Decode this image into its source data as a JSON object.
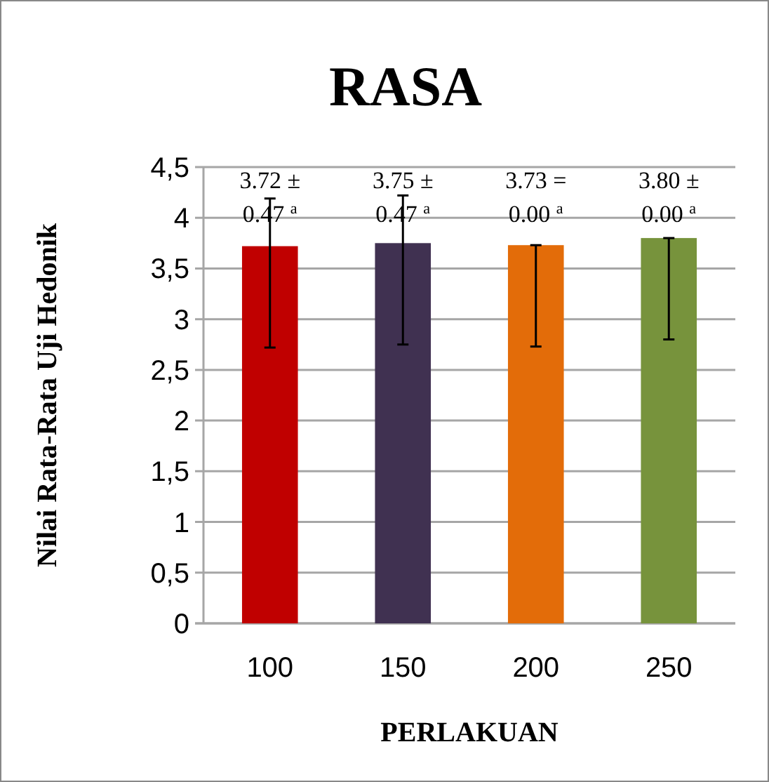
{
  "chart_data": {
    "type": "bar",
    "title": "RASA",
    "xlabel": "PERLAKUAN",
    "ylabel": "Nilai Rata-Rata Uji Hedonik",
    "categories": [
      "100",
      "150",
      "200",
      "250"
    ],
    "values": [
      3.72,
      3.75,
      3.73,
      3.8
    ],
    "colors": [
      "#c00000",
      "#403151",
      "#e36c09",
      "#77933c"
    ],
    "errors": [
      [
        2.72,
        4.19
      ],
      [
        2.75,
        4.22
      ],
      [
        2.73,
        3.73
      ],
      [
        2.8,
        3.8
      ]
    ],
    "value_labels": [
      "3.72 ± 0.47 $^{a}$",
      "3.75 ± 0.47 $^{a}$",
      "3.73 = 0.00 $^{a}$",
      "3.80 ± 0.00 $^{a}$"
    ],
    "ylim": [
      0,
      4.5
    ],
    "yticks": [
      0,
      {
        "value": 0.5,
        "label": "0,5"
      },
      1,
      {
        "value": 1.5,
        "label": "1,5"
      },
      2,
      {
        "value": 2.5,
        "label": "2,5"
      },
      3,
      {
        "value": 3.5,
        "label": "3,5"
      },
      4,
      {
        "value": 4.5,
        "label": "4,5"
      }
    ],
    "grid": "y"
  }
}
